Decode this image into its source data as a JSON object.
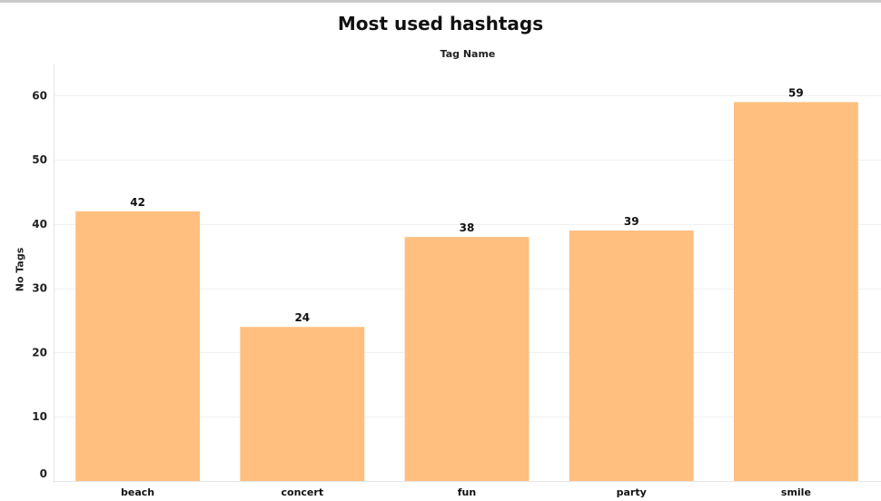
{
  "chart_data": {
    "type": "bar",
    "title": "Most used hashtags",
    "header_label": "Tag Name",
    "xlabel": "",
    "ylabel": "No Tags",
    "categories": [
      "beach",
      "concert",
      "fun",
      "party",
      "smile"
    ],
    "values": [
      42,
      24,
      38,
      39,
      59
    ],
    "data_labels": [
      "42",
      "24",
      "38",
      "39",
      "59"
    ],
    "y_ticks": [
      0,
      10,
      20,
      30,
      40,
      50,
      60
    ],
    "ylim": [
      0,
      65
    ],
    "grid": true,
    "legend": "none",
    "bar_color": "#FFBF7F"
  }
}
